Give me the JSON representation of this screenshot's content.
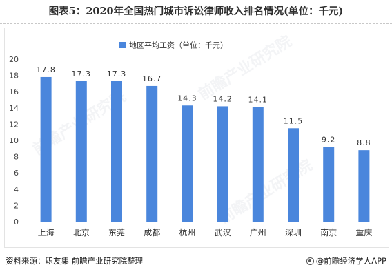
{
  "title": "图表5：2020年全国热门城市诉讼律师收入排名情况(单位：千元)",
  "chart_data": {
    "type": "bar",
    "categories": [
      "上海",
      "北京",
      "东莞",
      "成都",
      "杭州",
      "武汉",
      "广州",
      "深圳",
      "南京",
      "重庆"
    ],
    "series": [
      {
        "name": "地区平均工资（单位：千元）",
        "values": [
          17.8,
          17.3,
          17.3,
          16.7,
          14.3,
          14.2,
          14.1,
          11.5,
          9.2,
          8.8
        ]
      }
    ],
    "value_labels": [
      "17.8",
      "17.3",
      "17.3",
      "16.7",
      "14.3",
      "14.2",
      "14.1",
      "11.5",
      "9.2",
      "8.8"
    ],
    "yticks": [
      "0",
      "2",
      "4",
      "6",
      "8",
      "10",
      "12",
      "14",
      "16",
      "18",
      "20"
    ],
    "ylim": [
      0,
      20
    ],
    "grid": false,
    "legend_position": "top-left",
    "bar_color": "#4a86dc"
  },
  "watermark": "前瞻产业研究院",
  "footer": {
    "source": "资料来源：职友集 前瞻产业研究院整理",
    "brand": "@前瞻经济学人APP"
  }
}
